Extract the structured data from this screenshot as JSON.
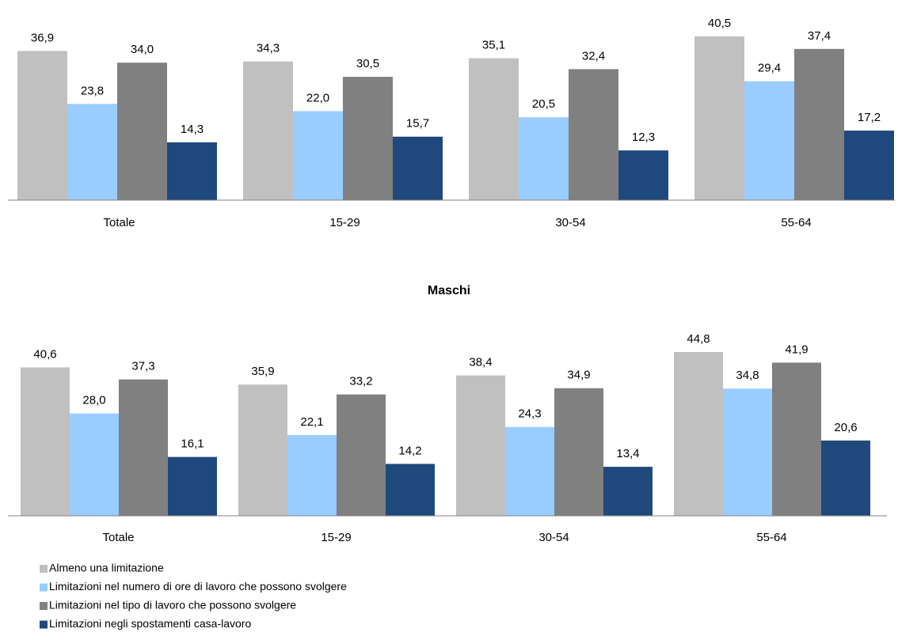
{
  "chart_data": [
    {
      "type": "bar",
      "categories": [
        "Totale",
        "15-29",
        "30-54",
        "55-64"
      ],
      "series": [
        {
          "name": "Almeno una limitazione",
          "color": "#c0c0c0",
          "values": [
            36.9,
            34.3,
            35.1,
            40.5
          ],
          "value_labels": [
            "36,9",
            "34,3",
            "35,1",
            "40,5"
          ]
        },
        {
          "name": "Limitazioni nel numero di ore di lavoro che possono svolgere",
          "color": "#99ccff",
          "values": [
            23.8,
            22.0,
            20.5,
            29.4
          ],
          "value_labels": [
            "23,8",
            "22,0",
            "20,5",
            "29,4"
          ]
        },
        {
          "name": "Limitazioni nel tipo di lavoro che possono svolgere",
          "color": "#808080",
          "values": [
            34.0,
            30.5,
            32.4,
            37.4
          ],
          "value_labels": [
            "34,0",
            "30,5",
            "32,4",
            "37,4"
          ]
        },
        {
          "name": "Limitazioni negli spostamenti casa-lavoro",
          "color": "#1f497d",
          "values": [
            14.3,
            15.7,
            12.3,
            17.2
          ],
          "value_labels": [
            "14,3",
            "15,7",
            "12,3",
            "17,2"
          ]
        }
      ]
    },
    {
      "type": "bar",
      "title": "Maschi",
      "categories": [
        "Totale",
        "15-29",
        "30-54",
        "55-64"
      ],
      "series": [
        {
          "color": "#c0c0c0",
          "values": [
            40.6,
            35.9,
            38.4,
            44.8
          ],
          "value_labels": [
            "40,6",
            "35,9",
            "38,4",
            "44,8"
          ]
        },
        {
          "color": "#99ccff",
          "values": [
            28.0,
            22.1,
            24.3,
            34.8
          ],
          "value_labels": [
            "28,0",
            "22,1",
            "24,3",
            "34,8"
          ]
        },
        {
          "color": "#808080",
          "values": [
            37.3,
            33.2,
            34.9,
            41.9
          ],
          "value_labels": [
            "37,3",
            "33,2",
            "34,9",
            "41,9"
          ]
        },
        {
          "color": "#1f497d",
          "values": [
            16.1,
            14.2,
            13.4,
            20.6
          ],
          "value_labels": [
            "16,1",
            "14,2",
            "13,4",
            "20,6"
          ]
        }
      ]
    }
  ]
}
